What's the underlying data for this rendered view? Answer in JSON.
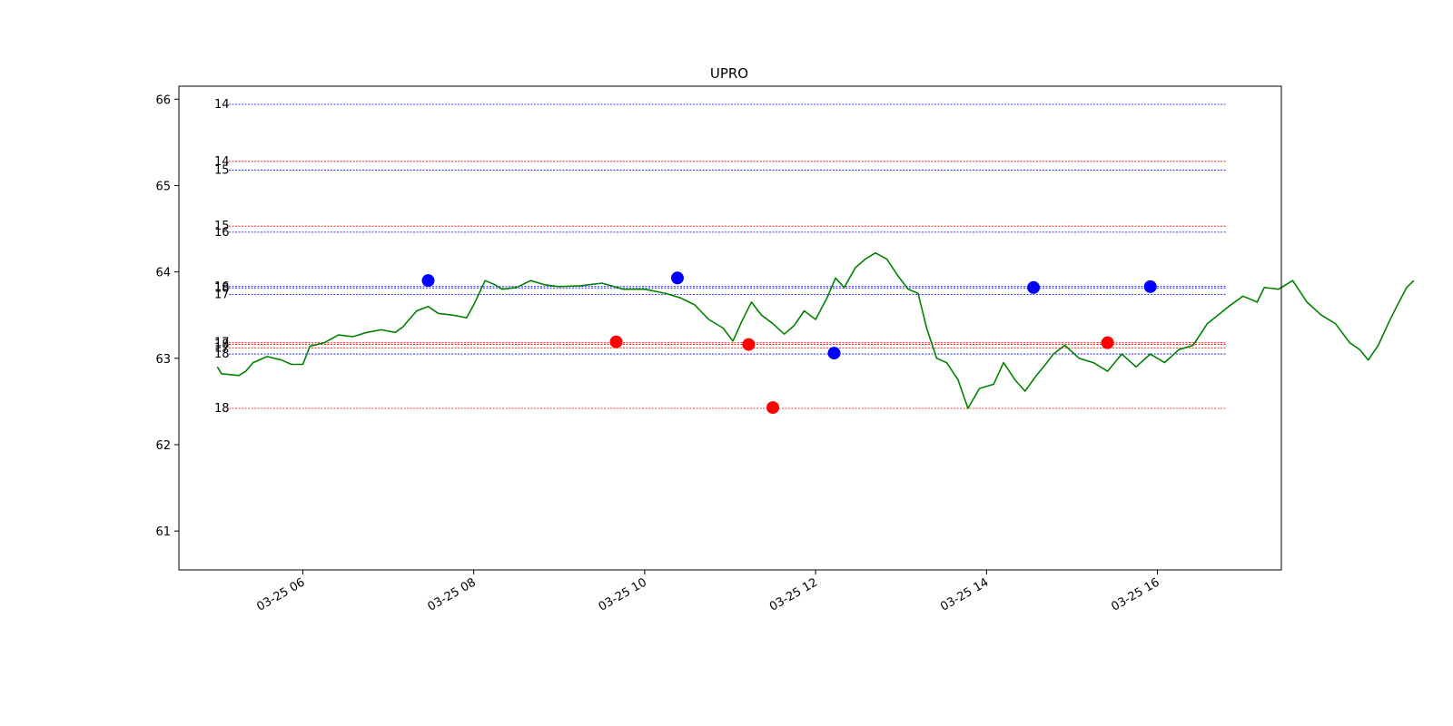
{
  "chart_data": {
    "type": "line",
    "title": "UPRO",
    "xlabel": "",
    "ylabel": "",
    "x_axis": {
      "type": "time",
      "range": [
        "03-25 04:33",
        "03-25 17:27"
      ],
      "ticks": [
        {
          "t": "03-25 06:00",
          "label": "03-25 06"
        },
        {
          "t": "03-25 08:00",
          "label": "03-25 08"
        },
        {
          "t": "03-25 10:00",
          "label": "03-25 10"
        },
        {
          "t": "03-25 12:00",
          "label": "03-25 12"
        },
        {
          "t": "03-25 14:00",
          "label": "03-25 14"
        },
        {
          "t": "03-25 16:00",
          "label": "03-25 16"
        }
      ]
    },
    "y_axis": {
      "range": [
        60.55,
        66.15
      ],
      "ticks": [
        61,
        62,
        63,
        64,
        65,
        66
      ]
    },
    "grid": false,
    "series": [
      {
        "color": "#008000",
        "points": [
          [
            "03-25 05:00",
            62.9
          ],
          [
            "03-25 05:03",
            62.82
          ],
          [
            "03-25 05:10",
            62.81
          ],
          [
            "03-25 05:15",
            62.8
          ],
          [
            "03-25 05:20",
            62.85
          ],
          [
            "03-25 05:25",
            62.95
          ],
          [
            "03-25 05:35",
            63.02
          ],
          [
            "03-25 05:45",
            62.98
          ],
          [
            "03-25 05:52",
            62.93
          ],
          [
            "03-25 06:00",
            62.93
          ],
          [
            "03-25 06:05",
            63.14
          ],
          [
            "03-25 06:15",
            63.18
          ],
          [
            "03-25 06:25",
            63.27
          ],
          [
            "03-25 06:35",
            63.25
          ],
          [
            "03-25 06:45",
            63.3
          ],
          [
            "03-25 06:55",
            63.33
          ],
          [
            "03-25 07:05",
            63.3
          ],
          [
            "03-25 07:10",
            63.36
          ],
          [
            "03-25 07:20",
            63.55
          ],
          [
            "03-25 07:28",
            63.6
          ],
          [
            "03-25 07:35",
            63.52
          ],
          [
            "03-25 07:45",
            63.5
          ],
          [
            "03-25 07:55",
            63.47
          ],
          [
            "03-25 08:00",
            63.62
          ],
          [
            "03-25 08:08",
            63.9
          ],
          [
            "03-25 08:15",
            63.85
          ],
          [
            "03-25 08:20",
            63.8
          ],
          [
            "03-25 08:30",
            63.82
          ],
          [
            "03-25 08:40",
            63.9
          ],
          [
            "03-25 08:50",
            63.85
          ],
          [
            "03-25 09:00",
            63.83
          ],
          [
            "03-25 09:15",
            63.84
          ],
          [
            "03-25 09:30",
            63.87
          ],
          [
            "03-25 09:45",
            63.8
          ],
          [
            "03-25 10:00",
            63.8
          ],
          [
            "03-25 10:15",
            63.75
          ],
          [
            "03-25 10:25",
            63.7
          ],
          [
            "03-25 10:35",
            63.62
          ],
          [
            "03-25 10:45",
            63.45
          ],
          [
            "03-25 10:55",
            63.35
          ],
          [
            "03-25 11:02",
            63.2
          ],
          [
            "03-25 11:08",
            63.42
          ],
          [
            "03-25 11:15",
            63.65
          ],
          [
            "03-25 11:22",
            63.5
          ],
          [
            "03-25 11:30",
            63.4
          ],
          [
            "03-25 11:38",
            63.28
          ],
          [
            "03-25 11:45",
            63.38
          ],
          [
            "03-25 11:52",
            63.55
          ],
          [
            "03-25 12:00",
            63.45
          ],
          [
            "03-25 12:08",
            63.7
          ],
          [
            "03-25 12:14",
            63.93
          ],
          [
            "03-25 12:20",
            63.82
          ],
          [
            "03-25 12:28",
            64.05
          ],
          [
            "03-25 12:35",
            64.15
          ],
          [
            "03-25 12:42",
            64.22
          ],
          [
            "03-25 12:50",
            64.15
          ],
          [
            "03-25 12:58",
            63.95
          ],
          [
            "03-25 13:05",
            63.8
          ],
          [
            "03-25 13:12",
            63.75
          ],
          [
            "03-25 13:18",
            63.35
          ],
          [
            "03-25 13:25",
            63.0
          ],
          [
            "03-25 13:32",
            62.95
          ],
          [
            "03-25 13:40",
            62.75
          ],
          [
            "03-25 13:47",
            62.42
          ],
          [
            "03-25 13:55",
            62.65
          ],
          [
            "03-25 14:05",
            62.7
          ],
          [
            "03-25 14:12",
            62.95
          ],
          [
            "03-25 14:20",
            62.75
          ],
          [
            "03-25 14:27",
            62.62
          ],
          [
            "03-25 14:35",
            62.8
          ],
          [
            "03-25 14:40",
            62.9
          ],
          [
            "03-25 14:47",
            63.05
          ],
          [
            "03-25 14:55",
            63.15
          ],
          [
            "03-25 15:05",
            63.0
          ],
          [
            "03-25 15:15",
            62.95
          ],
          [
            "03-25 15:25",
            62.85
          ],
          [
            "03-25 15:35",
            63.05
          ],
          [
            "03-25 15:45",
            62.9
          ],
          [
            "03-25 15:55",
            63.05
          ],
          [
            "03-25 16:05",
            62.95
          ],
          [
            "03-25 16:15",
            63.1
          ],
          [
            "03-25 16:25",
            63.15
          ],
          [
            "03-25 16:35",
            63.4
          ],
          [
            "03-25 16:50",
            63.6
          ],
          [
            "03-25 17:00",
            63.72
          ],
          [
            "03-25 17:10",
            63.65
          ],
          [
            "03-25 17:15",
            63.82
          ],
          [
            "03-25 17:25",
            63.8
          ],
          [
            "03-25 17:35",
            63.9
          ],
          [
            "03-25 17:45",
            63.65
          ],
          [
            "03-25 17:55",
            63.5
          ],
          [
            "03-25 18:05",
            63.4
          ],
          [
            "03-25 18:15",
            63.18
          ],
          [
            "03-25 18:22",
            63.1
          ],
          [
            "03-25 18:28",
            62.98
          ],
          [
            "03-25 18:35",
            63.15
          ],
          [
            "03-25 18:42",
            63.4
          ],
          [
            "03-25 18:48",
            63.6
          ],
          [
            "03-25 18:55",
            63.82
          ],
          [
            "03-25 19:00",
            63.9
          ]
        ]
      }
    ],
    "markers": [
      {
        "t": "03-25 07:28",
        "y": 63.9,
        "color": "#0000ff"
      },
      {
        "t": "03-25 09:40",
        "y": 63.19,
        "color": "#ff0000"
      },
      {
        "t": "03-25 10:23",
        "y": 63.93,
        "color": "#0000ff"
      },
      {
        "t": "03-25 11:13",
        "y": 63.16,
        "color": "#ff0000"
      },
      {
        "t": "03-25 11:30",
        "y": 62.43,
        "color": "#ff0000"
      },
      {
        "t": "03-25 12:13",
        "y": 63.06,
        "color": "#0000ff"
      },
      {
        "t": "03-25 14:33",
        "y": 63.82,
        "color": "#0000ff"
      },
      {
        "t": "03-25 15:25",
        "y": 63.18,
        "color": "#ff0000"
      },
      {
        "t": "03-25 15:55",
        "y": 63.83,
        "color": "#0000ff"
      }
    ],
    "levels": [
      {
        "label": "14",
        "y": 65.94,
        "color": "#0000ff"
      },
      {
        "label": "14",
        "y": 65.28,
        "color": "#ff0000"
      },
      {
        "label": "15",
        "y": 65.18,
        "color": "#0000ff"
      },
      {
        "label": "15",
        "y": 64.53,
        "color": "#ff0000"
      },
      {
        "label": "16",
        "y": 64.46,
        "color": "#0000ff"
      },
      {
        "label": "16",
        "y": 63.83,
        "color": "#0000ff"
      },
      {
        "label": "18",
        "y": 63.81,
        "color": "#0000ff"
      },
      {
        "label": "17",
        "y": 63.74,
        "color": "#0000ff"
      },
      {
        "label": "17",
        "y": 63.18,
        "color": "#ff0000"
      },
      {
        "label": "18",
        "y": 63.16,
        "color": "#ff0000"
      },
      {
        "label": "17",
        "y": 63.12,
        "color": "#ff0000"
      },
      {
        "label": "18",
        "y": 63.05,
        "color": "#0000ff"
      },
      {
        "label": "18",
        "y": 62.42,
        "color": "#ff0000"
      }
    ]
  }
}
